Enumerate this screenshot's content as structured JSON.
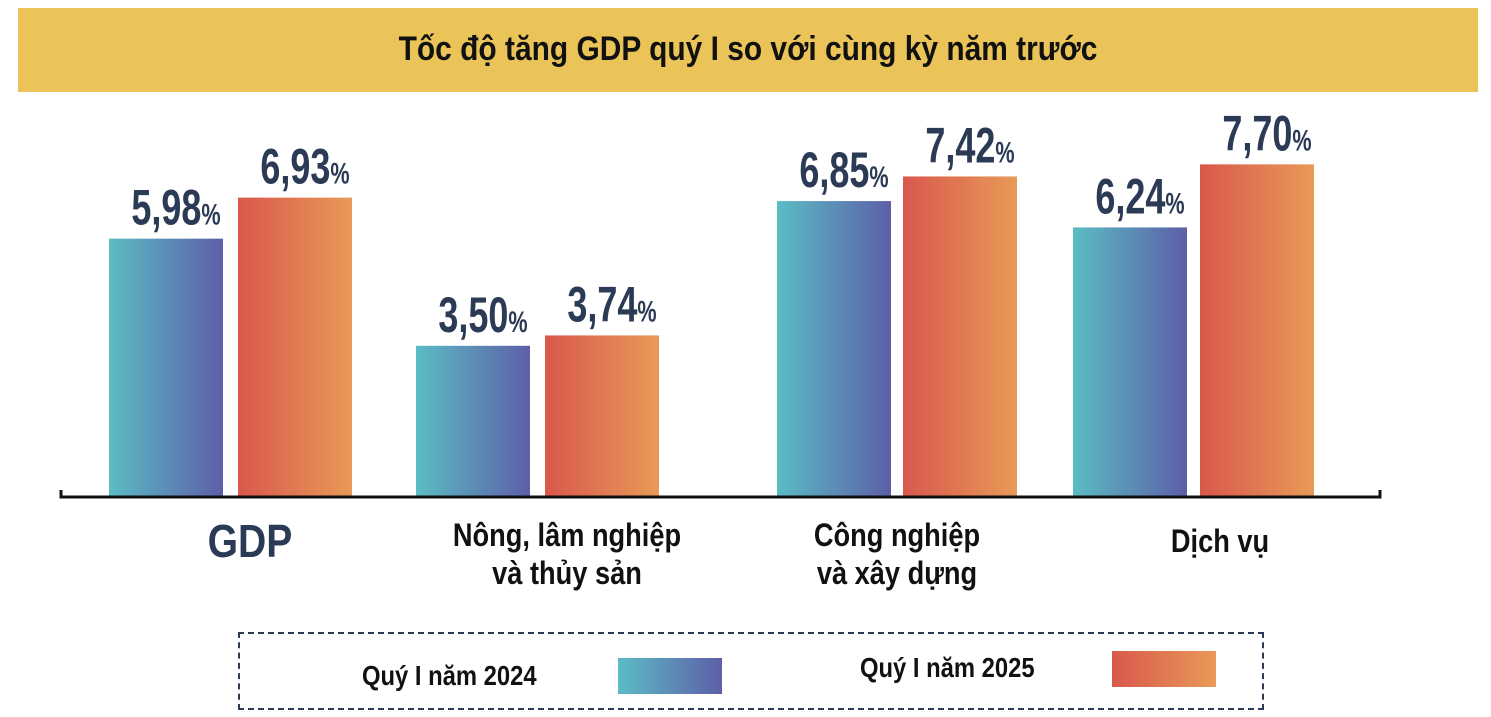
{
  "chart_data": {
    "type": "bar",
    "title": "Tốc độ tăng GDP quý I so với cùng kỳ năm trước",
    "categories": [
      "GDP",
      "Nông, lâm nghiệp và thủy sản",
      "Công nghiệp và xây dựng",
      "Dịch vụ"
    ],
    "category_lines": [
      [
        "GDP"
      ],
      [
        "Nông, lâm nghiệp",
        "và thủy sản"
      ],
      [
        "Công nghiệp",
        "và xây dựng"
      ],
      [
        "Dịch vụ"
      ]
    ],
    "series": [
      {
        "name": "Quý I năm 2024",
        "values": [
          5.98,
          3.5,
          6.85,
          6.24
        ],
        "labels": [
          "5,98",
          "3,50",
          "6,85",
          "6,24"
        ],
        "colors": [
          "#5bbcc4",
          "#5d5fa8"
        ]
      },
      {
        "name": "Quý I năm 2025",
        "values": [
          6.93,
          3.74,
          7.42,
          7.7
        ],
        "labels": [
          "6,93",
          "3,74",
          "7,42",
          "7,70"
        ],
        "colors": [
          "#d9584d",
          "#e89a57"
        ]
      }
    ],
    "unit": "%",
    "ylim": [
      0,
      9.5
    ],
    "grid": false,
    "legend_position": "bottom",
    "colors": {
      "banner": "#ebc459",
      "value_labels": "#2b3a55"
    }
  }
}
